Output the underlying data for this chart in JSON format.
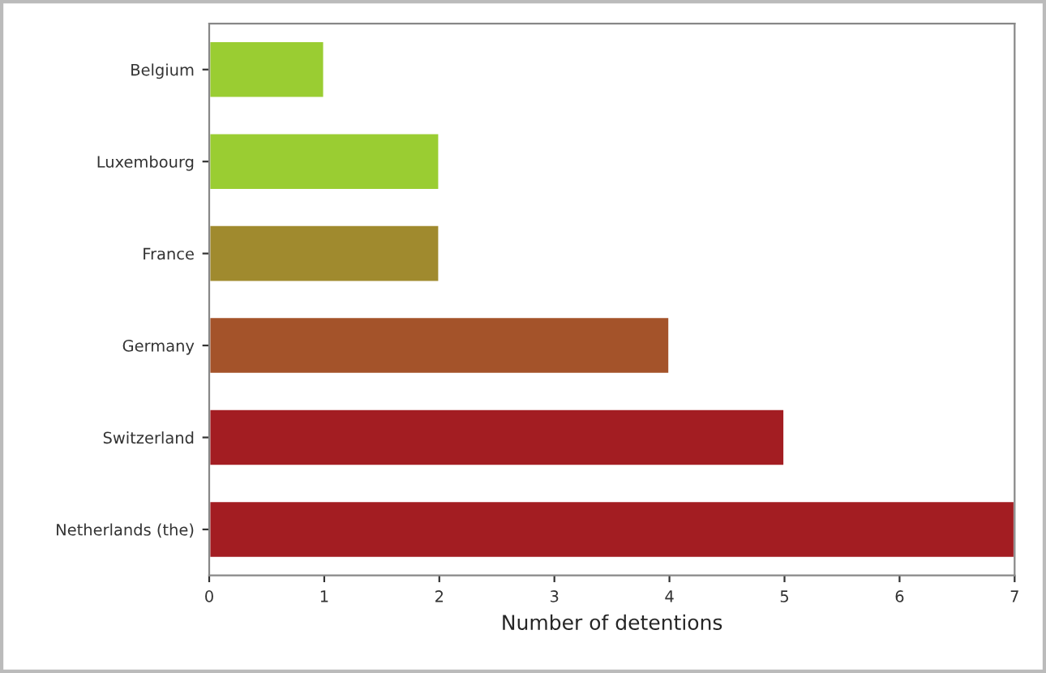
{
  "chart_data": {
    "type": "bar",
    "orientation": "horizontal",
    "xlabel": "Number of detentions",
    "categories": [
      "Belgium",
      "Luxembourg",
      "France",
      "Germany",
      "Switzerland",
      "Netherlands (the)"
    ],
    "values": [
      1,
      2,
      2,
      4,
      5,
      7
    ],
    "colors": [
      "#9acd32",
      "#9acd32",
      "#a08a2e",
      "#a4532a",
      "#a31d22",
      "#a31d22"
    ],
    "xlim": [
      0,
      7
    ],
    "xticks": [
      0,
      1,
      2,
      3,
      4,
      5,
      6,
      7
    ],
    "grid": false
  }
}
